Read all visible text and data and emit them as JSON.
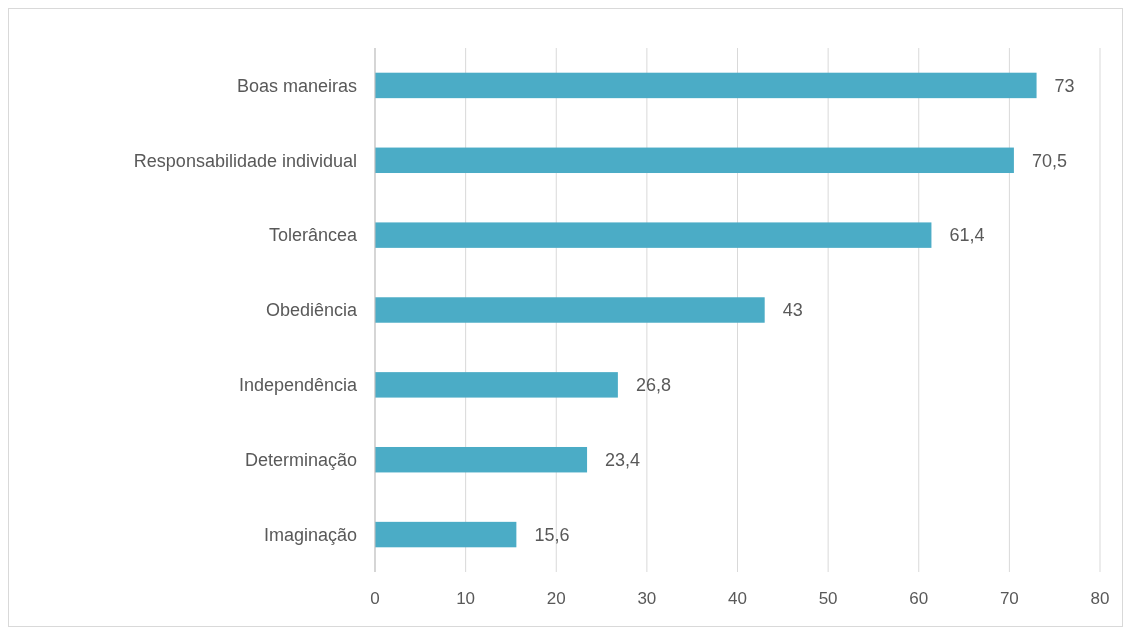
{
  "chart_data": {
    "type": "bar",
    "orientation": "horizontal",
    "categories": [
      "Boas maneiras",
      "Responsabilidade individual",
      "Tolerâncea",
      "Obediência",
      "Independência",
      "Determinação",
      "Imaginação"
    ],
    "values": [
      73,
      70.5,
      61.4,
      43,
      26.8,
      23.4,
      15.6
    ],
    "value_labels": [
      "73",
      "70,5",
      "61,4",
      "43",
      "26,8",
      "23,4",
      "15,6"
    ],
    "color": "#4bacc6",
    "xlim": [
      0,
      80
    ],
    "xticks": [
      0,
      10,
      20,
      30,
      40,
      50,
      60,
      70,
      80
    ],
    "grid": "x"
  }
}
